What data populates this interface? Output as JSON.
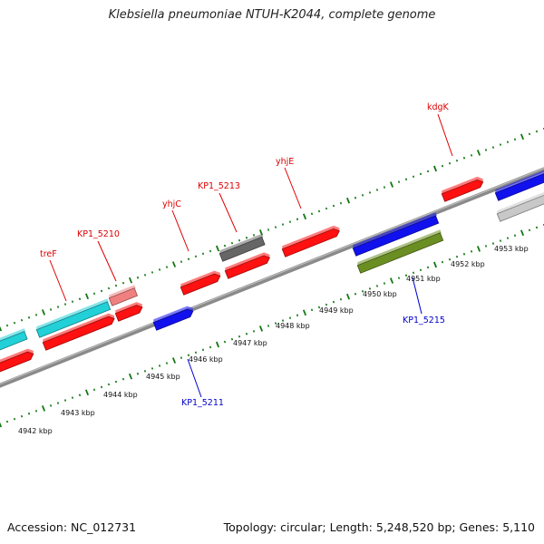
{
  "title": "Klebsiella pneumoniae NTUH-K2044, complete genome",
  "accession": "Accession: NC_012731",
  "summary": "Topology: circular; Length: 5,248,520 bp; Genes: 5,110",
  "colors": {
    "red": "#ff1111",
    "cyan": "#22d0d8",
    "blue": "#1111ee",
    "gray": "#666666",
    "pink": "#f08080",
    "olive": "#6b8e23",
    "lightgray": "#c8c8c8",
    "label_red": "#dd0000",
    "label_blue": "#0000cc",
    "tick_green": "#117711",
    "backbone": "#888888"
  },
  "tick_labels": [
    "4942 kbp",
    "4943 kbp",
    "4944 kbp",
    "4945 kbp",
    "4946 kbp",
    "4947 kbp",
    "4948 kbp",
    "4949 kbp",
    "4950 kbp",
    "4951 kbp",
    "4952 kbp",
    "4953 kbp"
  ],
  "gene_labels_top": [
    "treF",
    "KP1_5210",
    "yhjC",
    "KP1_5213",
    "yhjE",
    "kdgK"
  ],
  "gene_labels_bottom": [
    "KP1_5211",
    "KP1_5215"
  ]
}
